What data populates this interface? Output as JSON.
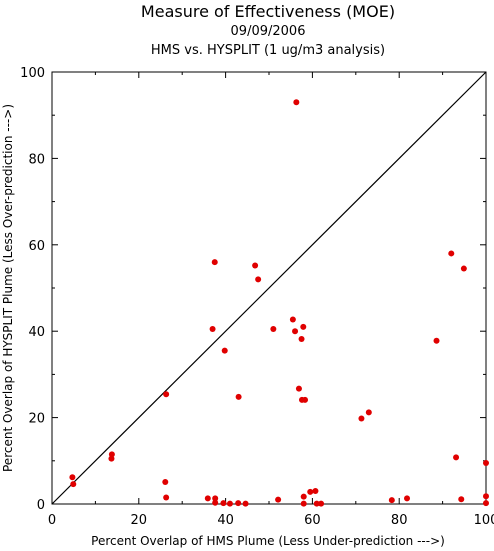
{
  "chart_data": {
    "type": "scatter",
    "title": "Measure of Effectiveness (MOE)",
    "subtitle_date": "09/09/2006",
    "subtitle_compare": "HMS vs. HYSPLIT  (1 ug/m3 analysis)",
    "xlabel": "Percent Overlap of HMS Plume (Less Under-prediction --->)",
    "ylabel": "Percent Overlap of HYSPLIT Plume (Less Over-prediction --->)",
    "xlim": [
      0,
      100
    ],
    "ylim": [
      0,
      100
    ],
    "xticks": [
      "0",
      "20",
      "40",
      "60",
      "80",
      "100"
    ],
    "yticks": [
      "0",
      "20",
      "40",
      "60",
      "80",
      "100"
    ],
    "reference_line": "y = x",
    "grid": false,
    "marker_color": "#e00000",
    "points": [
      [
        56.3,
        93.0
      ],
      [
        37.5,
        56.0
      ],
      [
        46.8,
        55.2
      ],
      [
        47.5,
        52.0
      ],
      [
        92.0,
        58.0
      ],
      [
        94.9,
        54.5
      ],
      [
        55.5,
        42.7
      ],
      [
        57.9,
        41.0
      ],
      [
        56.0,
        40.0
      ],
      [
        37.0,
        40.5
      ],
      [
        51.0,
        40.5
      ],
      [
        39.8,
        35.5
      ],
      [
        57.5,
        38.2
      ],
      [
        88.6,
        37.8
      ],
      [
        56.9,
        26.7
      ],
      [
        26.3,
        25.4
      ],
      [
        43.0,
        24.8
      ],
      [
        57.6,
        24.1
      ],
      [
        58.3,
        24.1
      ],
      [
        73.0,
        21.2
      ],
      [
        71.3,
        19.8
      ],
      [
        13.8,
        11.5
      ],
      [
        13.7,
        10.5
      ],
      [
        93.1,
        10.8
      ],
      [
        100,
        9.5
      ],
      [
        4.7,
        6.2
      ],
      [
        4.9,
        4.6
      ],
      [
        26.1,
        5.1
      ],
      [
        59.5,
        2.8
      ],
      [
        60.7,
        3.0
      ],
      [
        58.0,
        1.7
      ],
      [
        26.3,
        1.5
      ],
      [
        35.9,
        1.3
      ],
      [
        37.6,
        1.3
      ],
      [
        52.1,
        1.0
      ],
      [
        81.8,
        1.3
      ],
      [
        94.3,
        1.1
      ],
      [
        100,
        1.8
      ],
      [
        37.6,
        0.3
      ],
      [
        39.5,
        0.2
      ],
      [
        41.0,
        0.1
      ],
      [
        42.9,
        0.2
      ],
      [
        44.6,
        0.1
      ],
      [
        58.0,
        0.1
      ],
      [
        61.0,
        0.1
      ],
      [
        62.0,
        0.1
      ],
      [
        78.3,
        0.9
      ],
      [
        100,
        0.2
      ]
    ]
  }
}
